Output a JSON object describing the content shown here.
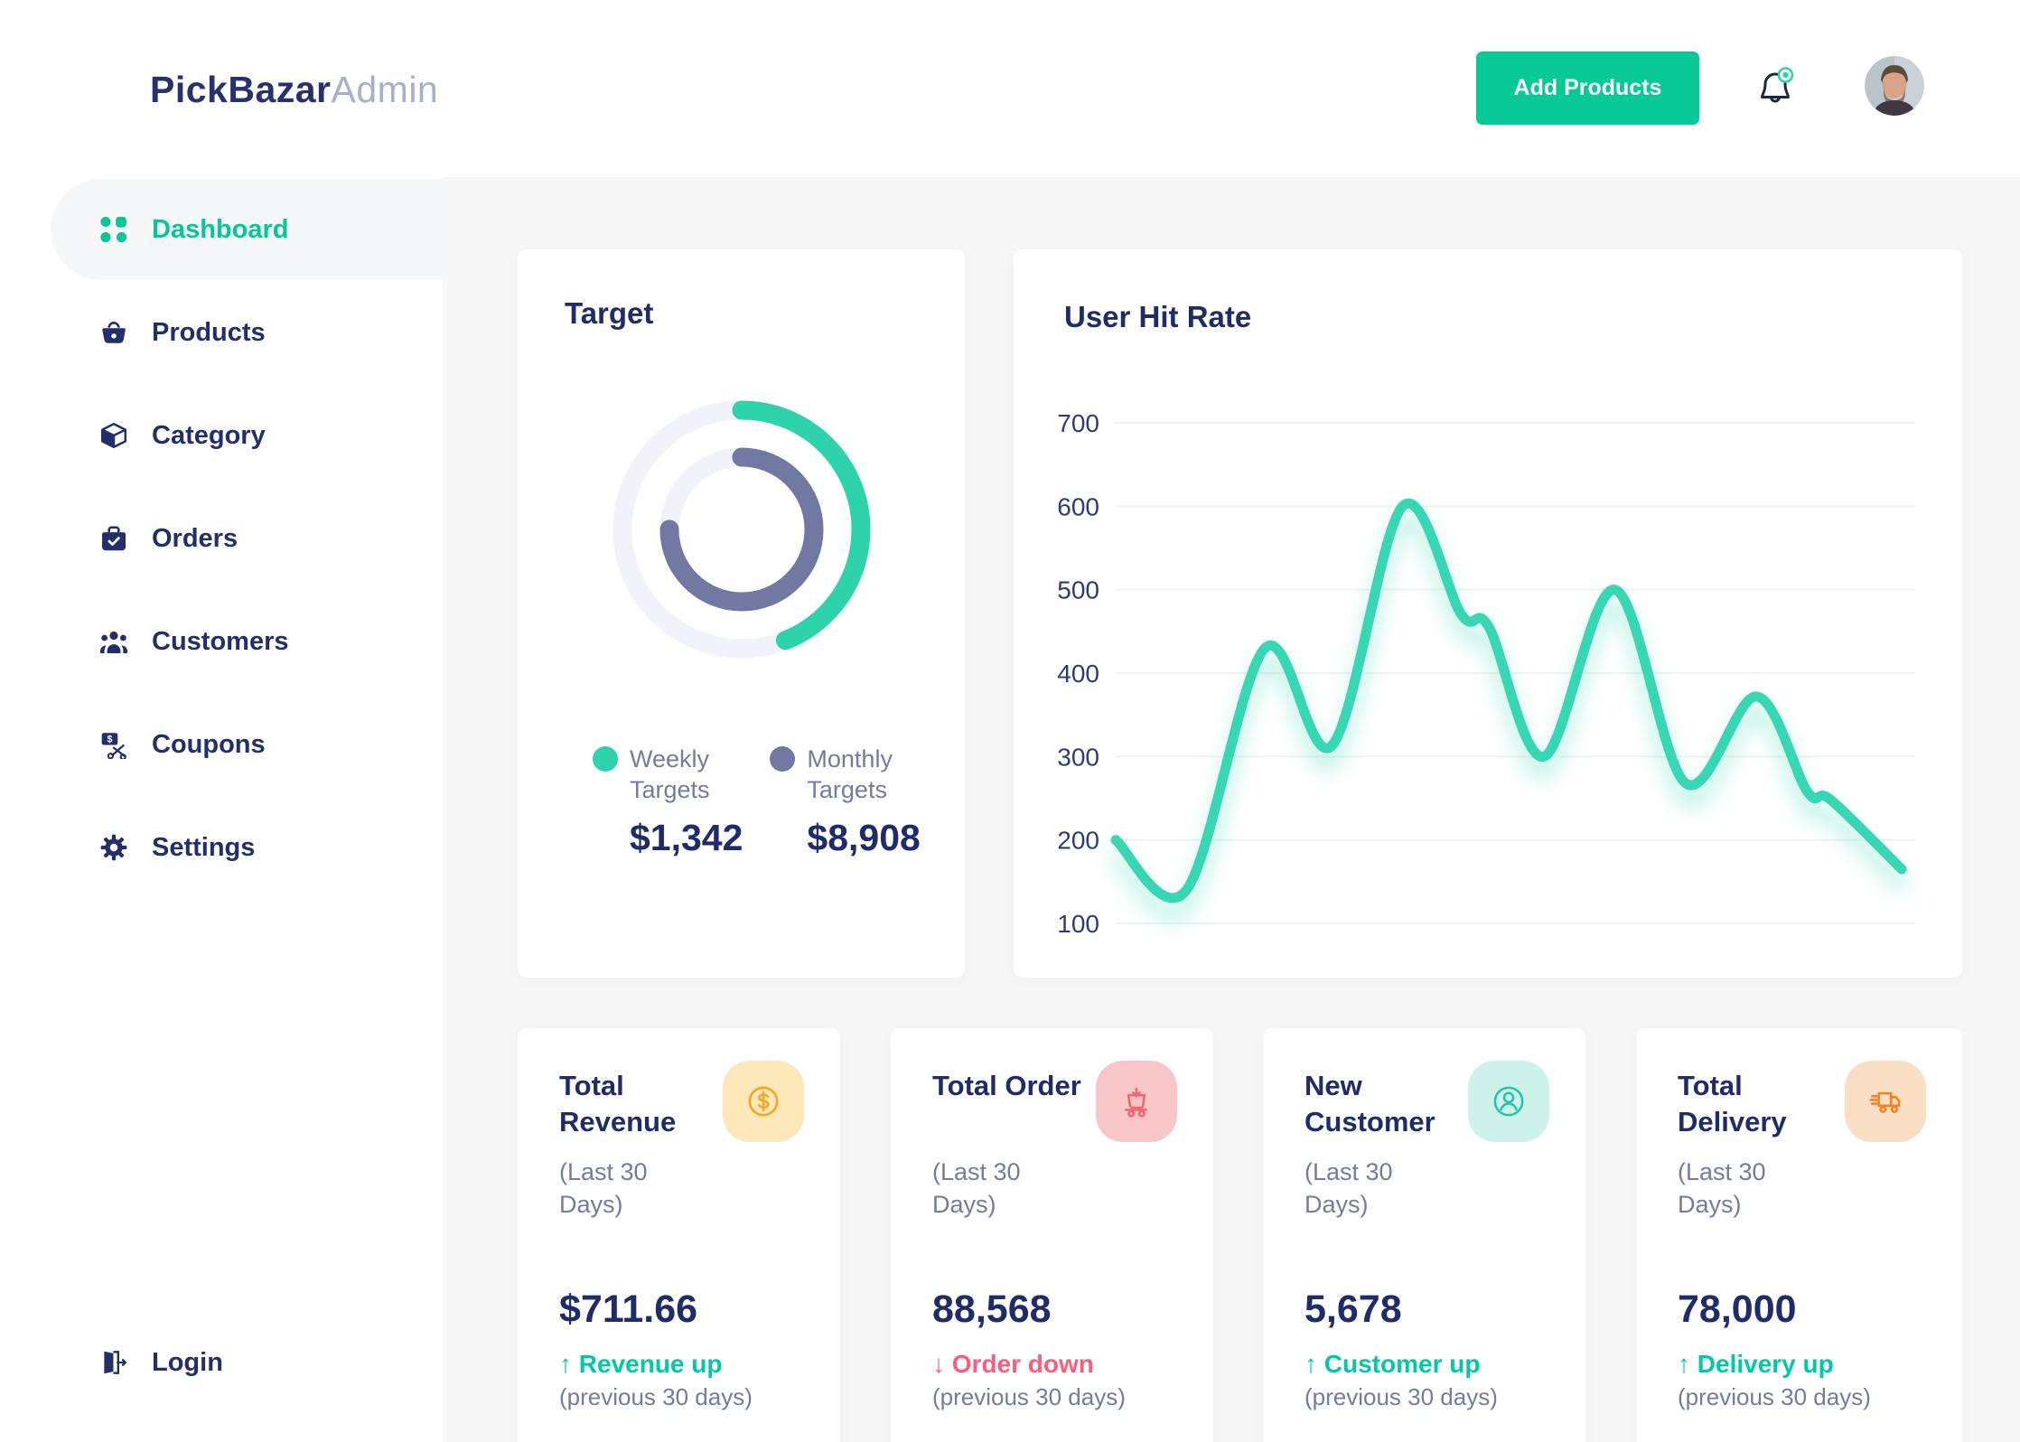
{
  "header": {
    "logo_primary": "PickBazar",
    "logo_secondary": "Admin",
    "add_products_label": "Add Products"
  },
  "sidebar": {
    "items": [
      {
        "label": "Dashboard",
        "icon": "dashboard-grid",
        "active": true
      },
      {
        "label": "Products",
        "icon": "shopping-basket",
        "active": false
      },
      {
        "label": "Category",
        "icon": "category-cube",
        "active": false
      },
      {
        "label": "Orders",
        "icon": "order-box",
        "active": false
      },
      {
        "label": "Customers",
        "icon": "customers-people",
        "active": false
      },
      {
        "label": "Coupons",
        "icon": "coupon-scissors",
        "active": false
      },
      {
        "label": "Settings",
        "icon": "settings-gear",
        "active": false
      },
      {
        "label": "Login",
        "icon": "login-door",
        "active": false
      }
    ]
  },
  "colors": {
    "accent_green": "#05c896",
    "navy": "#1f2c69",
    "muted_label": "#747c9e",
    "pink_down": "#fb5d7d",
    "teal_up": "#00c9a6",
    "main_background": "#f7f7f8"
  },
  "chart_data": [
    {
      "type": "pie",
      "variant": "donut-progress",
      "title": "Target",
      "track_color": "#f1f2fa",
      "series": [
        {
          "name": "Weekly Targets",
          "value_label": "$1,342",
          "percent": 44,
          "color": "#2ed3ac",
          "ring": "outer"
        },
        {
          "name": "Monthly Targets",
          "value_label": "$8,908",
          "percent": 75,
          "color": "#7179a3",
          "ring": "inner"
        }
      ]
    },
    {
      "type": "line",
      "title": "User Hit Rate",
      "line_color": "#36d7b2",
      "grid": "horizontal",
      "ylim": [
        100,
        700
      ],
      "yticks": [
        700,
        600,
        500,
        400,
        300,
        200,
        100
      ],
      "x_unit_percent": true,
      "points": [
        [
          0,
          200
        ],
        [
          9,
          140
        ],
        [
          19,
          430
        ],
        [
          27.5,
          313
        ],
        [
          36.5,
          600
        ],
        [
          44,
          470
        ],
        [
          47.5,
          455
        ],
        [
          54.5,
          300
        ],
        [
          63.5,
          500
        ],
        [
          72.5,
          268
        ],
        [
          81.5,
          372
        ],
        [
          88,
          258
        ],
        [
          91,
          248
        ],
        [
          100,
          165
        ]
      ]
    }
  ],
  "stat_cards": [
    {
      "title": "Total Revenue",
      "period": "(Last 30 Days)",
      "value": "$711.66",
      "trend_arrow": "↑",
      "trend_label": "Revenue up",
      "trend_color": "#00c9a6",
      "trend_note": "(previous 30 days)",
      "icon": "dollar-coin",
      "icon_color": "#f5a623",
      "icon_bg": "#fce8b8"
    },
    {
      "title": "Total Order",
      "period": "(Last 30 Days)",
      "value": "88,568",
      "trend_arrow": "↓",
      "trend_label": "Order down",
      "trend_color": "#fb5d7d",
      "trend_note": "(previous 30 days)",
      "icon": "cart-arrow-down",
      "icon_color": "#f4656f",
      "icon_bg": "#f9c6c8"
    },
    {
      "title": "New Customer",
      "period": "(Last 30 Days)",
      "value": "5,678",
      "trend_arrow": "↑",
      "trend_label": "Customer up",
      "trend_color": "#00c9a6",
      "trend_note": "(previous 30 days)",
      "icon": "user-circle",
      "icon_color": "#22c5a8",
      "icon_bg": "#ccf2ea"
    },
    {
      "title": "Total Delivery",
      "period": "(Last 30 Days)",
      "value": "78,000",
      "trend_arrow": "↑",
      "trend_label": "Delivery up",
      "trend_color": "#00c9a6",
      "trend_note": "(previous 30 days)",
      "icon": "delivery-truck",
      "icon_color": "#f5801f",
      "icon_bg": "#fbdfc5"
    }
  ]
}
